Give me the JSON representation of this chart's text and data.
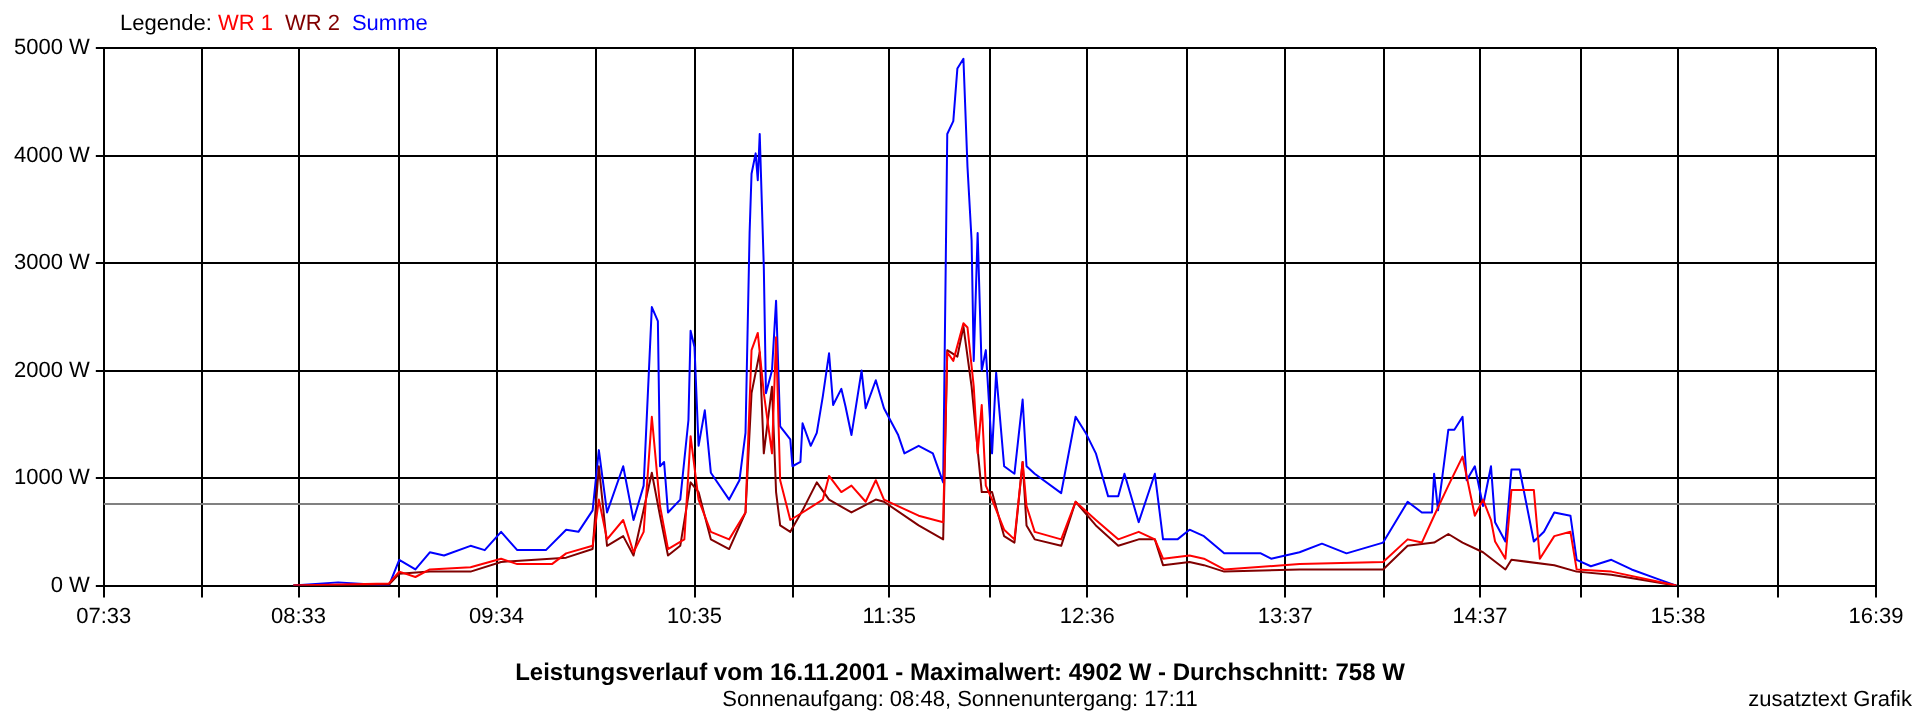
{
  "chart_data": {
    "type": "line",
    "title": "Leistungsverlauf vom 16.11.2001 - Maximalwert: 4902 W - Durchschnitt: 758 W",
    "subtitle": "Sonnenaufgang: 08:48, Sonnenuntergang: 17:11",
    "legend_title": "Legende:",
    "annotations": [
      "zusatztext Grafik"
    ],
    "legend": "top left",
    "grid": true,
    "xlim": [
      7.55,
      16.65
    ],
    "xticks": [
      {
        "value": 7.55,
        "label": "07:33"
      },
      {
        "value": 8.0556,
        "label": null
      },
      {
        "value": 8.55,
        "label": "08:33"
      },
      {
        "value": 9.0667,
        "label": null
      },
      {
        "value": 9.5667,
        "label": "09:34"
      },
      {
        "value": 10.0778,
        "label": null
      },
      {
        "value": 10.5833,
        "label": "10:35"
      },
      {
        "value": 11.0889,
        "label": null
      },
      {
        "value": 11.5833,
        "label": "11:35"
      },
      {
        "value": 12.1,
        "label": null
      },
      {
        "value": 12.6,
        "label": "12:36"
      },
      {
        "value": 13.1111,
        "label": null
      },
      {
        "value": 13.6167,
        "label": "13:37"
      },
      {
        "value": 14.1222,
        "label": null
      },
      {
        "value": 14.6167,
        "label": "14:37"
      },
      {
        "value": 15.1333,
        "label": null
      },
      {
        "value": 15.6333,
        "label": "15:38"
      },
      {
        "value": 16.1444,
        "label": null
      },
      {
        "value": 16.65,
        "label": "16:39"
      }
    ],
    "ylim": [
      0,
      5000
    ],
    "yticks": [
      {
        "value": 0,
        "label": "0 W"
      },
      {
        "value": 1000,
        "label": "1000 W"
      },
      {
        "value": 2000,
        "label": "2000 W"
      },
      {
        "value": 3000,
        "label": "3000 W"
      },
      {
        "value": 4000,
        "label": "4000 W"
      },
      {
        "value": 5000,
        "label": "5000 W"
      }
    ],
    "ref_lines": [
      {
        "axis": "y",
        "value": 758,
        "color": "#808080"
      }
    ],
    "series": [
      {
        "name": "WR 1",
        "color": "#ff0000",
        "x": [
          8.523,
          9.014,
          9.067,
          9.15,
          9.224,
          9.433,
          9.59,
          9.673,
          9.851,
          9.924,
          10.06,
          10.092,
          10.134,
          10.217,
          10.27,
          10.322,
          10.364,
          10.406,
          10.447,
          10.531,
          10.563,
          10.604,
          10.667,
          10.761,
          10.845,
          10.876,
          10.908,
          10.939,
          10.981,
          11.002,
          11.023,
          11.075,
          11.138,
          11.242,
          11.274,
          11.337,
          11.389,
          11.462,
          11.514,
          11.556,
          11.734,
          11.86,
          11.881,
          11.912,
          11.964,
          11.985,
          12.017,
          12.037,
          12.058,
          12.079,
          12.111,
          12.173,
          12.226,
          12.268,
          12.288,
          12.33,
          12.466,
          12.54,
          12.644,
          12.759,
          12.864,
          12.947,
          12.989,
          13.125,
          13.199,
          13.303,
          13.69,
          14.119,
          14.245,
          14.318,
          14.381,
          14.454,
          14.527,
          14.59,
          14.632,
          14.673,
          14.694,
          14.747,
          14.778,
          14.893,
          14.924,
          14.998,
          15.081,
          15.113,
          15.291,
          15.625
        ],
        "values": [
          0,
          20,
          130,
          80,
          150,
          170,
          250,
          200,
          200,
          300,
          370,
          800,
          430,
          610,
          310,
          500,
          1570,
          740,
          340,
          430,
          1390,
          800,
          500,
          430,
          680,
          2190,
          2350,
          1790,
          1230,
          2310,
          980,
          610,
          680,
          800,
          1020,
          870,
          930,
          780,
          980,
          800,
          650,
          590,
          2170,
          2090,
          2440,
          2400,
          1850,
          1230,
          1680,
          930,
          800,
          520,
          430,
          1150,
          740,
          500,
          430,
          780,
          610,
          430,
          500,
          430,
          250,
          280,
          250,
          150,
          200,
          220,
          430,
          400,
          650,
          930,
          1200,
          650,
          800,
          610,
          410,
          250,
          890,
          890,
          250,
          460,
          500,
          150,
          130,
          0
        ]
      },
      {
        "name": "WR 2",
        "color": "#800000",
        "x": [
          8.523,
          9.014,
          9.067,
          9.224,
          9.433,
          9.59,
          9.924,
          10.06,
          10.092,
          10.134,
          10.217,
          10.27,
          10.364,
          10.406,
          10.447,
          10.51,
          10.563,
          10.604,
          10.667,
          10.761,
          10.845,
          10.876,
          10.918,
          10.939,
          10.981,
          11.002,
          11.023,
          11.075,
          11.138,
          11.211,
          11.274,
          11.389,
          11.514,
          11.556,
          11.734,
          11.86,
          11.881,
          11.933,
          11.964,
          12.006,
          12.058,
          12.111,
          12.173,
          12.226,
          12.268,
          12.288,
          12.33,
          12.466,
          12.54,
          12.644,
          12.759,
          12.864,
          12.947,
          12.989,
          13.125,
          13.199,
          13.303,
          13.69,
          14.119,
          14.245,
          14.381,
          14.454,
          14.527,
          14.632,
          14.747,
          14.778,
          14.998,
          15.113,
          15.291,
          15.625
        ],
        "values": [
          0,
          10,
          110,
          130,
          130,
          220,
          260,
          340,
          1110,
          370,
          460,
          280,
          1050,
          650,
          280,
          370,
          960,
          870,
          430,
          340,
          680,
          1790,
          2170,
          1230,
          1850,
          870,
          560,
          500,
          700,
          960,
          800,
          680,
          800,
          780,
          560,
          430,
          2190,
          2130,
          2410,
          1850,
          870,
          870,
          460,
          400,
          1150,
          560,
          430,
          370,
          780,
          560,
          370,
          430,
          430,
          190,
          220,
          190,
          130,
          150,
          150,
          370,
          400,
          480,
          400,
          310,
          150,
          240,
          190,
          130,
          100,
          0
        ]
      },
      {
        "name": "Summe",
        "color": "#0000ff",
        "x": [
          8.523,
          8.753,
          9.014,
          9.067,
          9.15,
          9.224,
          9.297,
          9.433,
          9.506,
          9.59,
          9.673,
          9.82,
          9.924,
          9.987,
          10.06,
          10.092,
          10.134,
          10.217,
          10.27,
          10.322,
          10.364,
          10.395,
          10.406,
          10.427,
          10.447,
          10.51,
          10.552,
          10.563,
          10.583,
          10.604,
          10.636,
          10.667,
          10.761,
          10.814,
          10.845,
          10.866,
          10.876,
          10.897,
          10.908,
          10.918,
          10.939,
          10.95,
          10.981,
          11.002,
          11.023,
          11.075,
          11.086,
          11.127,
          11.138,
          11.18,
          11.211,
          11.242,
          11.274,
          11.295,
          11.337,
          11.358,
          11.389,
          11.441,
          11.462,
          11.514,
          11.556,
          11.629,
          11.661,
          11.734,
          11.807,
          11.86,
          11.881,
          11.912,
          11.933,
          11.964,
          11.985,
          12.006,
          12.017,
          12.037,
          12.058,
          12.079,
          12.111,
          12.132,
          12.173,
          12.226,
          12.268,
          12.288,
          12.33,
          12.466,
          12.54,
          12.592,
          12.644,
          12.707,
          12.759,
          12.791,
          12.864,
          12.947,
          12.989,
          13.063,
          13.125,
          13.199,
          13.303,
          13.491,
          13.544,
          13.69,
          13.805,
          13.931,
          14.119,
          14.245,
          14.318,
          14.37,
          14.381,
          14.401,
          14.454,
          14.485,
          14.527,
          14.548,
          14.59,
          14.632,
          14.673,
          14.694,
          14.747,
          14.778,
          14.82,
          14.893,
          14.945,
          14.998,
          15.081,
          15.113,
          15.186,
          15.291,
          15.395,
          15.531,
          15.625
        ],
        "values": [
          0,
          30,
          0,
          240,
          150,
          310,
          280,
          370,
          330,
          500,
          330,
          330,
          520,
          500,
          700,
          1260,
          680,
          1110,
          610,
          930,
          2590,
          2460,
          1110,
          1150,
          680,
          800,
          1540,
          2370,
          2220,
          1300,
          1630,
          1050,
          800,
          980,
          1420,
          3280,
          3830,
          4020,
          3770,
          4200,
          2960,
          1790,
          2000,
          2650,
          1480,
          1360,
          1110,
          1150,
          1510,
          1300,
          1420,
          1760,
          2160,
          1680,
          1830,
          1670,
          1400,
          2000,
          1650,
          1910,
          1650,
          1400,
          1230,
          1300,
          1230,
          960,
          4200,
          4320,
          4810,
          4900,
          3890,
          3210,
          2090,
          3280,
          2000,
          2190,
          1230,
          1980,
          1110,
          1040,
          1730,
          1110,
          1040,
          860,
          1570,
          1420,
          1230,
          830,
          830,
          1040,
          590,
          1040,
          430,
          430,
          520,
          460,
          300,
          300,
          250,
          310,
          390,
          300,
          400,
          780,
          680,
          680,
          1040,
          700,
          1450,
          1450,
          1570,
          980,
          1110,
          740,
          1110,
          590,
          410,
          1080,
          1080,
          410,
          500,
          680,
          650,
          240,
          180,
          240,
          150,
          60,
          0
        ]
      }
    ]
  }
}
